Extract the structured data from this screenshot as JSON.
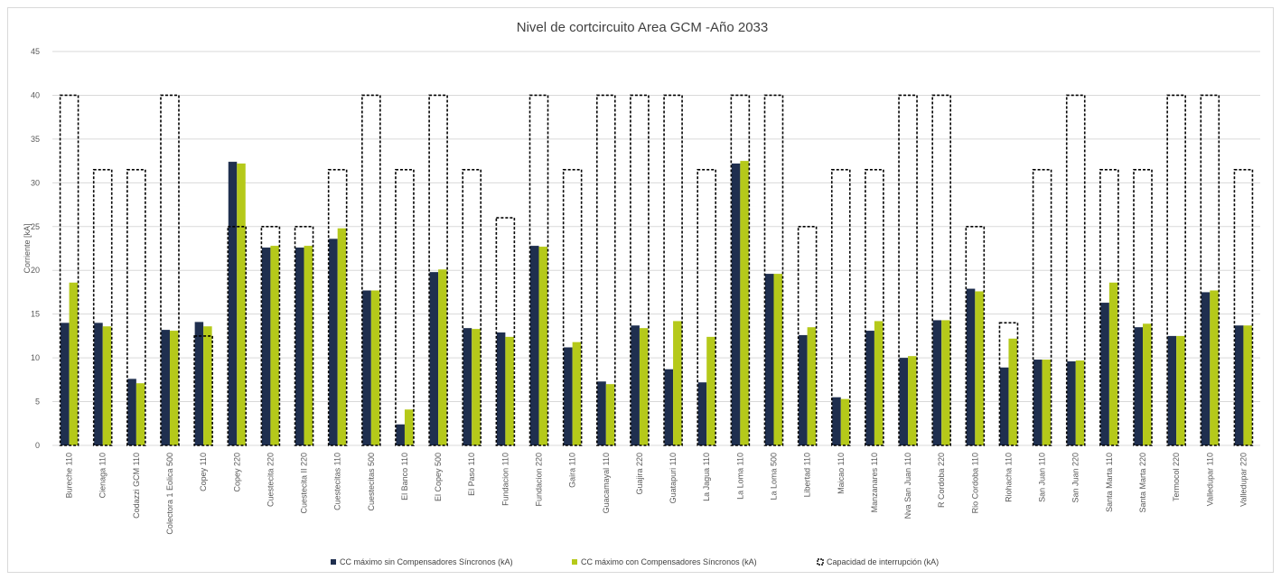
{
  "chart_data": {
    "type": "bar",
    "title": "Nivel de cortcircuito Area GCM -Año 2033",
    "xlabel": "",
    "ylabel": "Corriente [kA]",
    "ylim": [
      0,
      45
    ],
    "yticks": [
      0,
      5,
      10,
      15,
      20,
      25,
      30,
      35,
      40,
      45
    ],
    "grid": true,
    "legend_position": "bottom",
    "colors": {
      "sin": "#1f2f4f",
      "con": "#b5c91a",
      "capacidad": "#000000",
      "grid": "#d9d9d9"
    },
    "categories": [
      "Bureche 110",
      "Cienaga 110",
      "Codazzi GCM 110",
      "Colectora 1 Eolica 500",
      "Copey 110",
      "Copey 220",
      "Cuestecita 220",
      "Cuestecita II 220",
      "Cuestecitas 110",
      "Cuestecitas 500",
      "El Banco 110",
      "El Copey 500",
      "El Paso 110",
      "Fundacion 110",
      "Fundacion 220",
      "Gaira 110",
      "Guacamayal 110",
      "Guajira 220",
      "Guatapuri 110",
      "La Jagua 110",
      "La Loma 110",
      "La Loma 500",
      "Libertad 110",
      "Maicao 110",
      "Manzanares 110",
      "Nva San Juan 110",
      "R Cordoba 220",
      "Rio Cordoba 110",
      "Riohacha 110",
      "San Juan 110",
      "San Juan 220",
      "Santa Marta 110",
      "Santa Marta 220",
      "Termocol 220",
      "Valledupar 110",
      "Valledupar 220"
    ],
    "series": [
      {
        "name": "CC máximo sin Compensadores Síncronos (kA)",
        "type": "bar",
        "values": [
          14.0,
          14.0,
          7.6,
          13.2,
          14.1,
          32.4,
          22.6,
          22.6,
          23.6,
          17.7,
          2.4,
          19.8,
          13.4,
          12.9,
          22.8,
          11.2,
          7.3,
          13.7,
          8.7,
          7.2,
          32.2,
          19.6,
          12.6,
          5.5,
          13.1,
          10.0,
          14.3,
          17.9,
          8.9,
          9.8,
          9.6,
          16.3,
          13.5,
          12.5,
          17.5,
          13.7
        ]
      },
      {
        "name": "CC máximo con Compensadores Síncronos (kA)",
        "type": "bar",
        "values": [
          18.6,
          13.6,
          7.1,
          13.1,
          13.6,
          32.2,
          22.8,
          22.8,
          24.8,
          17.7,
          4.1,
          20.1,
          13.3,
          12.4,
          22.7,
          11.8,
          7.0,
          13.4,
          14.2,
          12.4,
          32.5,
          19.6,
          13.5,
          5.3,
          14.2,
          10.2,
          14.3,
          17.6,
          12.2,
          9.8,
          9.7,
          18.6,
          13.9,
          12.5,
          17.7,
          13.7
        ]
      },
      {
        "name": "Capacidad de interrupción (kA)",
        "type": "outline-bar",
        "values": [
          40,
          31.5,
          31.5,
          40,
          12.5,
          25,
          25,
          25,
          31.5,
          40,
          31.5,
          40,
          31.5,
          26,
          40,
          31.5,
          40,
          40,
          40,
          31.5,
          40,
          40,
          25,
          31.5,
          31.5,
          40,
          40,
          25,
          14,
          31.5,
          40,
          31.5,
          31.5,
          40,
          40,
          31.5
        ]
      }
    ]
  }
}
